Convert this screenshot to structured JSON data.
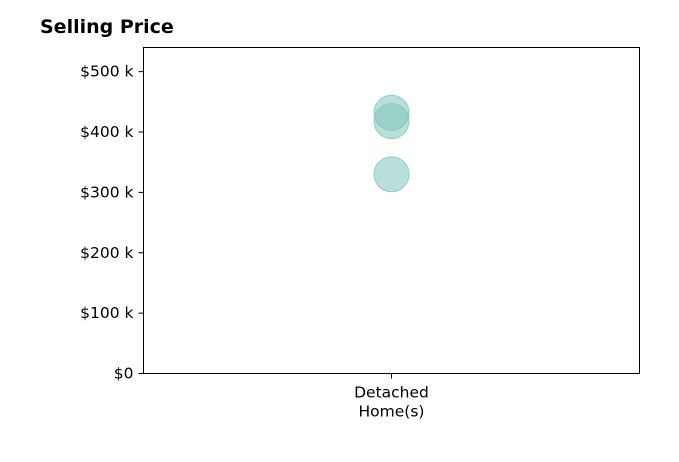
{
  "chart_data": {
    "type": "scatter",
    "title": "Selling Price",
    "xlabel": "",
    "ylabel": "",
    "categories": [
      [
        "Detached",
        "Home(s)"
      ]
    ],
    "series": [
      {
        "category_index": 0,
        "values": [
          432000,
          418000,
          330000
        ]
      }
    ],
    "ylim": [
      0,
      540000
    ],
    "yticks": [
      0,
      100000,
      200000,
      300000,
      400000,
      500000
    ],
    "ytick_labels": [
      "$0",
      "$100 k",
      "$200 k",
      "$300 k",
      "$400 k",
      "$500 k"
    ],
    "grid": false,
    "legend": "none",
    "marker_color": "#7fc5bc"
  }
}
